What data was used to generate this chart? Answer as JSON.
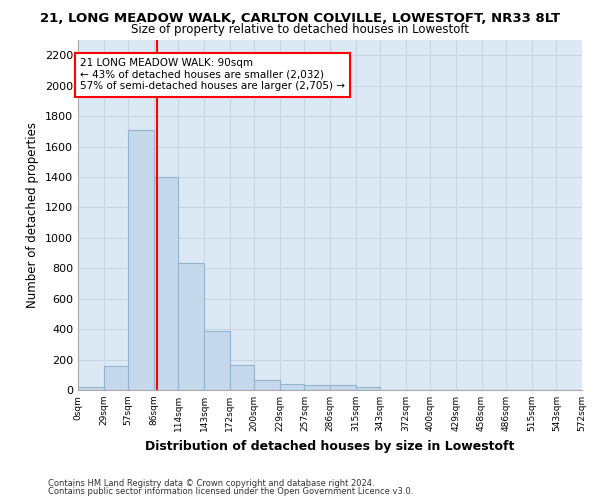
{
  "title_line1": "21, LONG MEADOW WALK, CARLTON COLVILLE, LOWESTOFT, NR33 8LT",
  "title_line2": "Size of property relative to detached houses in Lowestoft",
  "xlabel": "Distribution of detached houses by size in Lowestoft",
  "ylabel": "Number of detached properties",
  "bar_edges": [
    0,
    29,
    57,
    86,
    114,
    143,
    172,
    200,
    229,
    257,
    286,
    315,
    343,
    372,
    400,
    429,
    458,
    486,
    515,
    543,
    572
  ],
  "bar_heights": [
    20,
    155,
    1710,
    1400,
    835,
    385,
    165,
    65,
    40,
    30,
    30,
    20,
    0,
    0,
    0,
    0,
    0,
    0,
    0,
    0
  ],
  "bar_color": "#c6d9ec",
  "bar_edgecolor": "#92b4cf",
  "vline_x": 90,
  "vline_color": "red",
  "annotation_text": "21 LONG MEADOW WALK: 90sqm\n← 43% of detached houses are smaller (2,032)\n57% of semi-detached houses are larger (2,705) →",
  "annotation_box_color": "white",
  "annotation_box_edgecolor": "red",
  "ylim": [
    0,
    2300
  ],
  "yticks": [
    0,
    200,
    400,
    600,
    800,
    1000,
    1200,
    1400,
    1600,
    1800,
    2000,
    2200
  ],
  "tick_labels": [
    "0sqm",
    "29sqm",
    "57sqm",
    "86sqm",
    "114sqm",
    "143sqm",
    "172sqm",
    "200sqm",
    "229sqm",
    "257sqm",
    "286sqm",
    "315sqm",
    "343sqm",
    "372sqm",
    "400sqm",
    "429sqm",
    "458sqm",
    "486sqm",
    "515sqm",
    "543sqm",
    "572sqm"
  ],
  "footer_line1": "Contains HM Land Registry data © Crown copyright and database right 2024.",
  "footer_line2": "Contains public sector information licensed under the Open Government Licence v3.0.",
  "grid_color": "#c8d4e4",
  "background_color": "#dce8f4",
  "fig_width": 6.0,
  "fig_height": 5.0,
  "dpi": 100
}
